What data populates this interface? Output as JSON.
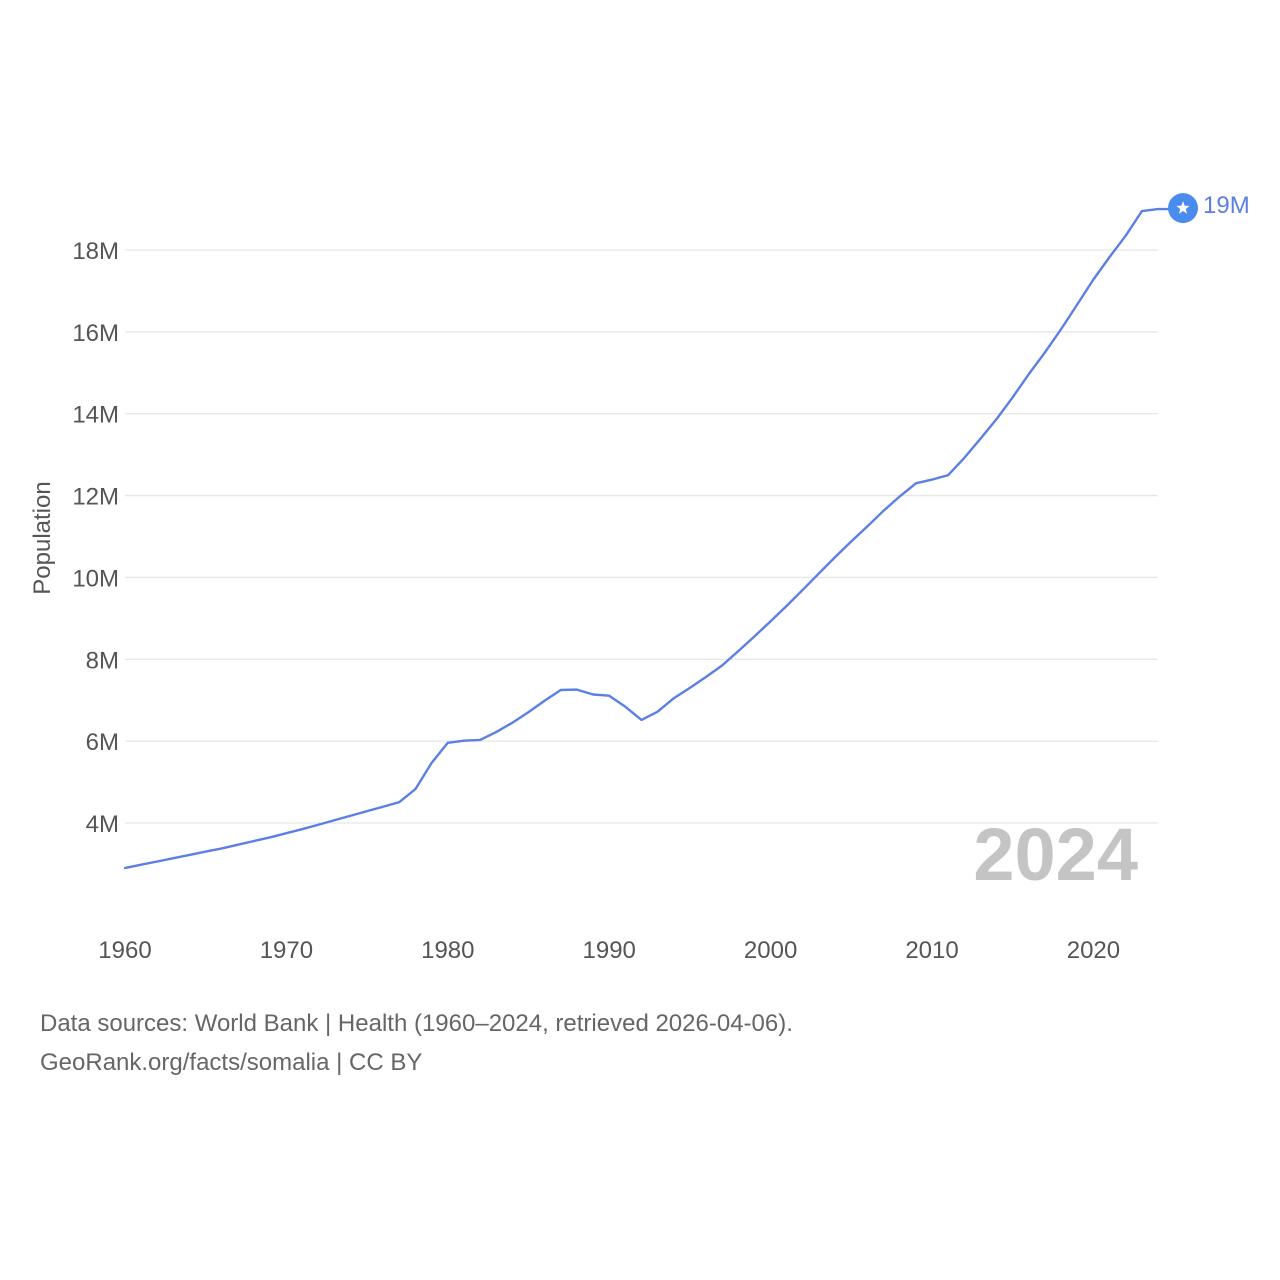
{
  "chart_data": {
    "type": "line",
    "title": "",
    "xlabel": "",
    "ylabel": "Population",
    "xlim": [
      1960,
      2024
    ],
    "ylim": [
      2000000,
      19800000
    ],
    "grid": true,
    "x_ticks": [
      {
        "value": 1960,
        "label": "1960"
      },
      {
        "value": 1970,
        "label": "1970"
      },
      {
        "value": 1980,
        "label": "1980"
      },
      {
        "value": 1990,
        "label": "1990"
      },
      {
        "value": 2000,
        "label": "2000"
      },
      {
        "value": 2010,
        "label": "2010"
      },
      {
        "value": 2020,
        "label": "2020"
      }
    ],
    "y_ticks": [
      {
        "value": 4000000,
        "label": "4M"
      },
      {
        "value": 6000000,
        "label": "6M"
      },
      {
        "value": 8000000,
        "label": "8M"
      },
      {
        "value": 10000000,
        "label": "10M"
      },
      {
        "value": 12000000,
        "label": "12M"
      },
      {
        "value": 14000000,
        "label": "14M"
      },
      {
        "value": 16000000,
        "label": "16M"
      },
      {
        "value": 18000000,
        "label": "18M"
      }
    ],
    "series": [
      {
        "name": "Somalia",
        "color": "#5b7fe3",
        "x": [
          1960,
          1961,
          1962,
          1963,
          1964,
          1965,
          1966,
          1967,
          1968,
          1969,
          1970,
          1971,
          1972,
          1973,
          1974,
          1975,
          1976,
          1977,
          1978,
          1979,
          1980,
          1981,
          1982,
          1983,
          1984,
          1985,
          1986,
          1987,
          1988,
          1989,
          1990,
          1991,
          1992,
          1993,
          1994,
          1995,
          1996,
          1997,
          1998,
          1999,
          2000,
          2001,
          2002,
          2003,
          2004,
          2005,
          2006,
          2007,
          2008,
          2009,
          2010,
          2011,
          2012,
          2013,
          2014,
          2015,
          2016,
          2017,
          2018,
          2019,
          2020,
          2021,
          2022,
          2023,
          2024
        ],
        "values": [
          2900000,
          2980000,
          3060000,
          3140000,
          3220000,
          3300000,
          3380000,
          3470000,
          3560000,
          3650000,
          3750000,
          3850000,
          3960000,
          4070000,
          4180000,
          4290000,
          4400000,
          4510000,
          4830000,
          5470000,
          5960000,
          6010000,
          6030000,
          6220000,
          6450000,
          6710000,
          6990000,
          7250000,
          7260000,
          7140000,
          7110000,
          6840000,
          6520000,
          6720000,
          7050000,
          7300000,
          7570000,
          7850000,
          8200000,
          8560000,
          8930000,
          9310000,
          9700000,
          10100000,
          10500000,
          10880000,
          11250000,
          11630000,
          11980000,
          12300000,
          12390000,
          12500000,
          12920000,
          13390000,
          13870000,
          14400000,
          14970000,
          15500000,
          16070000,
          16670000,
          17280000,
          17830000,
          18350000,
          18950000,
          19000000
        ]
      }
    ],
    "end_label": "19M",
    "end_marker_icon": "star-flag-icon",
    "year_display": "2024"
  },
  "footer": {
    "line1": "Data sources: World Bank | Health (1960–2024, retrieved 2026-04-06).",
    "line2": "GeoRank.org/facts/somalia | CC BY"
  }
}
